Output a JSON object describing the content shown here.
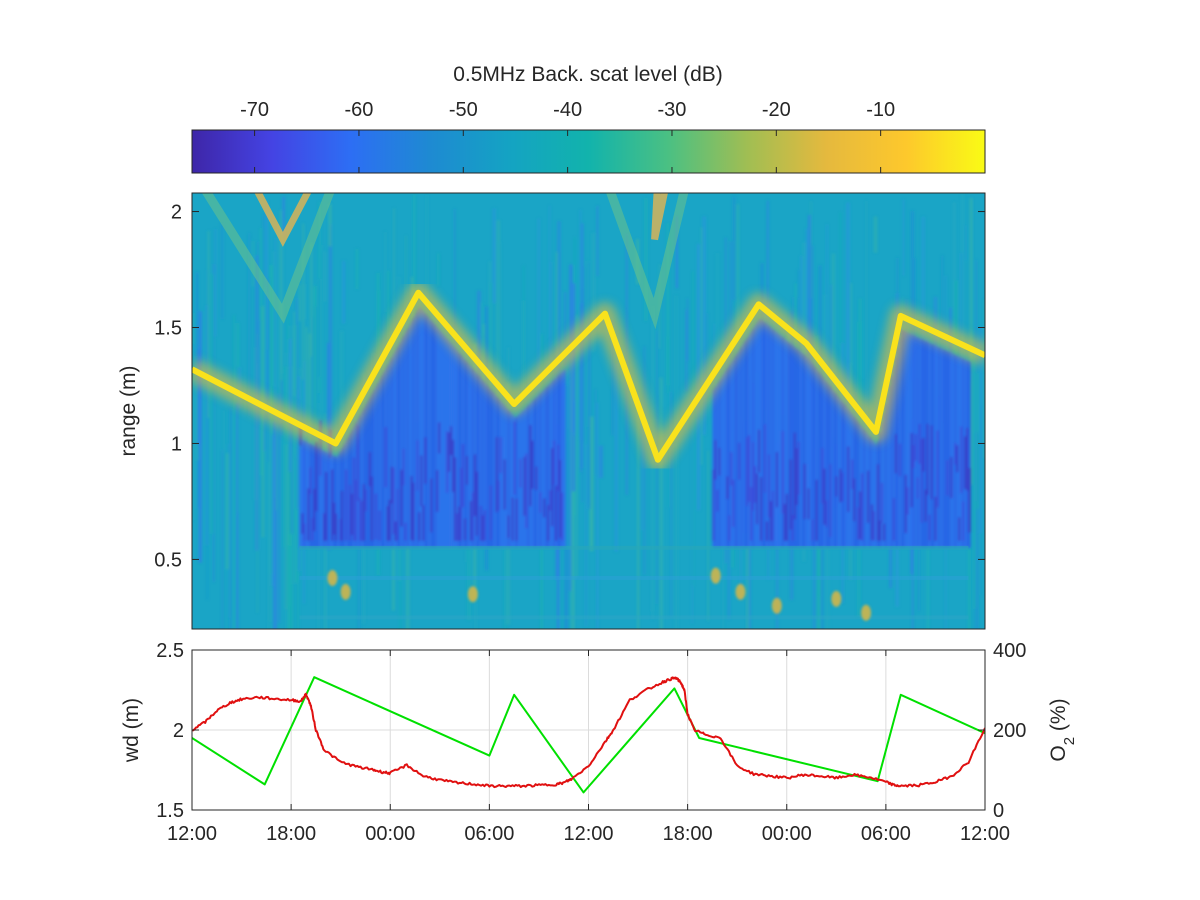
{
  "chart_data": [
    {
      "type": "heatmap",
      "title": "",
      "colorbar": {
        "label": "0.5MHz Back. scat level (dB)",
        "ticks": [
          -70,
          -60,
          -50,
          -40,
          -30,
          -20,
          -10
        ],
        "tick_labels": [
          "-70",
          "-60",
          "-50",
          "-40",
          "-30",
          "-20",
          "-10"
        ],
        "range": [
          -76,
          0
        ],
        "colormap": [
          "#3e26a8",
          "#4443e3",
          "#2d6ef4",
          "#1e8ad2",
          "#14a3c3",
          "#12b3ac",
          "#4ac083",
          "#a0be53",
          "#e5b93e",
          "#fdc82c",
          "#f9fb15"
        ],
        "placement": "top"
      },
      "xlabel": "",
      "ylabel": "range (m)",
      "xlim": [
        0,
        48
      ],
      "ylim": [
        0.2,
        2.08
      ],
      "y_ticks": [
        0.5,
        1,
        1.5,
        2
      ],
      "y_tick_labels": [
        "0.5",
        "1",
        "1.5",
        "2"
      ],
      "surface_echo_x_hours": [
        0,
        8.7,
        13.7,
        19.5,
        25,
        28.2,
        34.3,
        37.2,
        41.4,
        42.9,
        48
      ],
      "surface_echo_y_m": [
        1.32,
        1.0,
        1.65,
        1.17,
        1.56,
        0.93,
        1.6,
        1.43,
        1.05,
        1.55,
        1.38
      ],
      "grid": false
    },
    {
      "type": "line",
      "title": "",
      "xlabel": "",
      "x_unit": "hours",
      "xlim": [
        0,
        48
      ],
      "x_ticks": [
        0,
        6,
        12,
        18,
        24,
        30,
        36,
        42,
        48
      ],
      "x_tick_labels": [
        "12:00",
        "18:00",
        "00:00",
        "06:00",
        "12:00",
        "18:00",
        "00:00",
        "06:00",
        "12:00"
      ],
      "y_left": {
        "label": "wd (m)",
        "lim": [
          1.5,
          2.5
        ],
        "ticks": [
          1.5,
          2,
          2.5
        ],
        "tick_labels": [
          "1.5",
          "2",
          "2.5"
        ],
        "color": "#00e000"
      },
      "y_right": {
        "label_main": "O",
        "label_sub": "2",
        "label_suffix": " (%)",
        "lim": [
          0,
          400
        ],
        "ticks": [
          0,
          200,
          400
        ],
        "tick_labels": [
          "0",
          "200",
          "400"
        ],
        "color": "#e01010"
      },
      "grid": true,
      "series": [
        {
          "axis": "left",
          "color": "#00e000",
          "x": [
            0,
            4.4,
            7.4,
            18.0,
            19.5,
            23.7,
            29.2,
            30.7,
            41.5,
            42.9,
            48
          ],
          "y": [
            1.95,
            1.66,
            2.33,
            1.84,
            2.22,
            1.61,
            2.26,
            1.95,
            1.68,
            2.22,
            1.98
          ]
        },
        {
          "axis": "right",
          "color": "#e01010",
          "x": [
            0,
            0.8,
            1.5,
            2.3,
            3.0,
            4.0,
            5.0,
            6.0,
            6.6,
            6.9,
            7.2,
            7.5,
            8.0,
            9.0,
            10.0,
            11.0,
            11.5,
            12.0,
            13.0,
            14.0,
            15.0,
            16.0,
            17.0,
            18.0,
            19.0,
            20.0,
            21.0,
            22.0,
            22.5,
            23.0,
            24.0,
            25.0,
            25.5,
            26.5,
            27.5,
            28.5,
            29.0,
            29.3,
            29.6,
            29.8,
            30.0,
            30.4,
            31.0,
            32.0,
            33.0,
            34.0,
            35.0,
            36.0,
            37.0,
            38.0,
            39.0,
            40.0,
            41.0,
            42.0,
            42.5,
            43.0,
            44.0,
            45.0,
            46.0,
            47.0,
            48.0
          ],
          "y": [
            200,
            220,
            248,
            268,
            277,
            282,
            278,
            275,
            272,
            290,
            260,
            200,
            150,
            120,
            108,
            100,
            95,
            92,
            112,
            85,
            75,
            68,
            65,
            60,
            60,
            60,
            62,
            64,
            68,
            78,
            110,
            170,
            200,
            275,
            300,
            320,
            328,
            330,
            318,
            300,
            240,
            200,
            190,
            180,
            110,
            90,
            85,
            80,
            88,
            85,
            80,
            88,
            82,
            70,
            62,
            60,
            62,
            70,
            85,
            120,
            205
          ]
        }
      ]
    }
  ]
}
